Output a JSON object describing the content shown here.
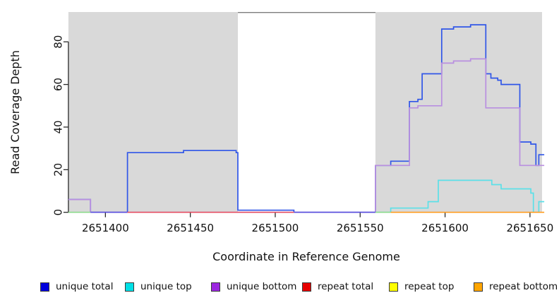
{
  "figure": {
    "background": "#ffffff",
    "xlabel": "Coordinate in Reference Genome",
    "ylabel": "Read Coverage Depth"
  },
  "chart_data": {
    "type": "line",
    "subtype": "step-coverage",
    "title": "",
    "xlabel": "Coordinate in Reference Genome",
    "ylabel": "Read Coverage Depth",
    "xlim": [
      2651378.2,
      2651658.4
    ],
    "ylim": [
      0,
      94
    ],
    "grid": false,
    "x_ticks": [
      {
        "coord": 2651400,
        "label": "2651400"
      },
      {
        "coord": 2651450,
        "label": "2651450"
      },
      {
        "coord": 2651500,
        "label": "2651500"
      },
      {
        "coord": 2651550,
        "label": "2651550"
      },
      {
        "coord": 2651600,
        "label": "2651600"
      },
      {
        "coord": 2651650,
        "label": "2651650"
      }
    ],
    "y_ticks": [
      {
        "value": 0,
        "label": "0"
      },
      {
        "value": 20,
        "label": "20"
      },
      {
        "value": 40,
        "label": "40"
      },
      {
        "value": 60,
        "label": "60"
      },
      {
        "value": 80,
        "label": "80"
      }
    ],
    "shaded_regions": [
      {
        "from": 2651378.2,
        "to": 2651478,
        "fill": "#d9d9d9"
      },
      {
        "from": 2651559,
        "to": 2651657.1,
        "fill": "#d9d9d9"
      }
    ],
    "gap_top_border": {
      "from": 2651478,
      "to": 2651559,
      "color": "#7d7d7d"
    },
    "series": [
      {
        "name": "unique top",
        "color": "#5ce0e8",
        "xend": 2651658.4,
        "steps": [
          [
            2651559,
            0
          ],
          [
            2651568,
            2
          ],
          [
            2651590,
            5
          ],
          [
            2651596,
            15
          ],
          [
            2651627.5,
            13
          ],
          [
            2651633,
            11
          ],
          [
            2651650.5,
            9
          ],
          [
            2651652,
            0
          ],
          [
            2651655.2,
            5
          ]
        ]
      },
      {
        "name": "unique total",
        "color": "#3056e8",
        "xend": 2651658.4,
        "steps": [
          [
            2651378.2,
            6
          ],
          [
            2651391.2,
            0
          ],
          [
            2651413,
            28
          ],
          [
            2651446,
            29
          ],
          [
            2651477,
            28
          ],
          [
            2651478,
            1
          ],
          [
            2651511,
            0
          ],
          [
            2651559,
            22
          ],
          [
            2651568,
            24
          ],
          [
            2651579,
            52
          ],
          [
            2651584,
            53
          ],
          [
            2651586.5,
            65
          ],
          [
            2651598,
            86
          ],
          [
            2651605,
            87
          ],
          [
            2651615,
            88
          ],
          [
            2651624,
            65
          ],
          [
            2651627,
            63
          ],
          [
            2651631,
            62
          ],
          [
            2651633,
            60
          ],
          [
            2651644,
            33
          ],
          [
            2651650.5,
            32
          ],
          [
            2651653.5,
            22
          ],
          [
            2651655.2,
            27
          ]
        ]
      },
      {
        "name": "unique bottom",
        "color": "#b98fe0",
        "xend": 2651658.4,
        "steps": [
          [
            2651378.2,
            6
          ],
          [
            2651391.2,
            0
          ],
          [
            2651559,
            22
          ],
          [
            2651579,
            49
          ],
          [
            2651584,
            50
          ],
          [
            2651598,
            70
          ],
          [
            2651605,
            71
          ],
          [
            2651615,
            72
          ],
          [
            2651624,
            49
          ],
          [
            2651644,
            22
          ]
        ]
      }
    ],
    "baseline_segments": [
      {
        "from": 2651378.2,
        "to": 2651391.2,
        "color": "#8cd98c",
        "represents": "repeat top + unique top at 0"
      },
      {
        "from": 2651391.2,
        "to": 2651413.0,
        "color": "#5b50dd",
        "represents": "unique total + unique bottom at 0"
      },
      {
        "from": 2651413.0,
        "to": 2651511.0,
        "color": "#e44f63",
        "represents": "repeat total at 0"
      },
      {
        "from": 2651511.0,
        "to": 2651559.0,
        "color": "#5b50dd",
        "represents": "unique lines at 0"
      },
      {
        "from": 2651559.0,
        "to": 2651568.0,
        "color": "#8cd98c",
        "represents": "repeat top + unique top at 0"
      },
      {
        "from": 2651568.0,
        "to": 2651658.4,
        "color": "#ff9d20",
        "represents": "repeat bottom at 0"
      }
    ],
    "legend_position": "bottom",
    "legend": [
      {
        "label": "unique total",
        "color": "#0000dd"
      },
      {
        "label": "unique top",
        "color": "#00e0e6"
      },
      {
        "label": "unique bottom",
        "color": "#9c27e0"
      },
      {
        "label": "repeat total",
        "color": "#e60000"
      },
      {
        "label": "repeat top",
        "color": "#ffff00"
      },
      {
        "label": "repeat bottom",
        "color": "#ffa500"
      }
    ]
  }
}
